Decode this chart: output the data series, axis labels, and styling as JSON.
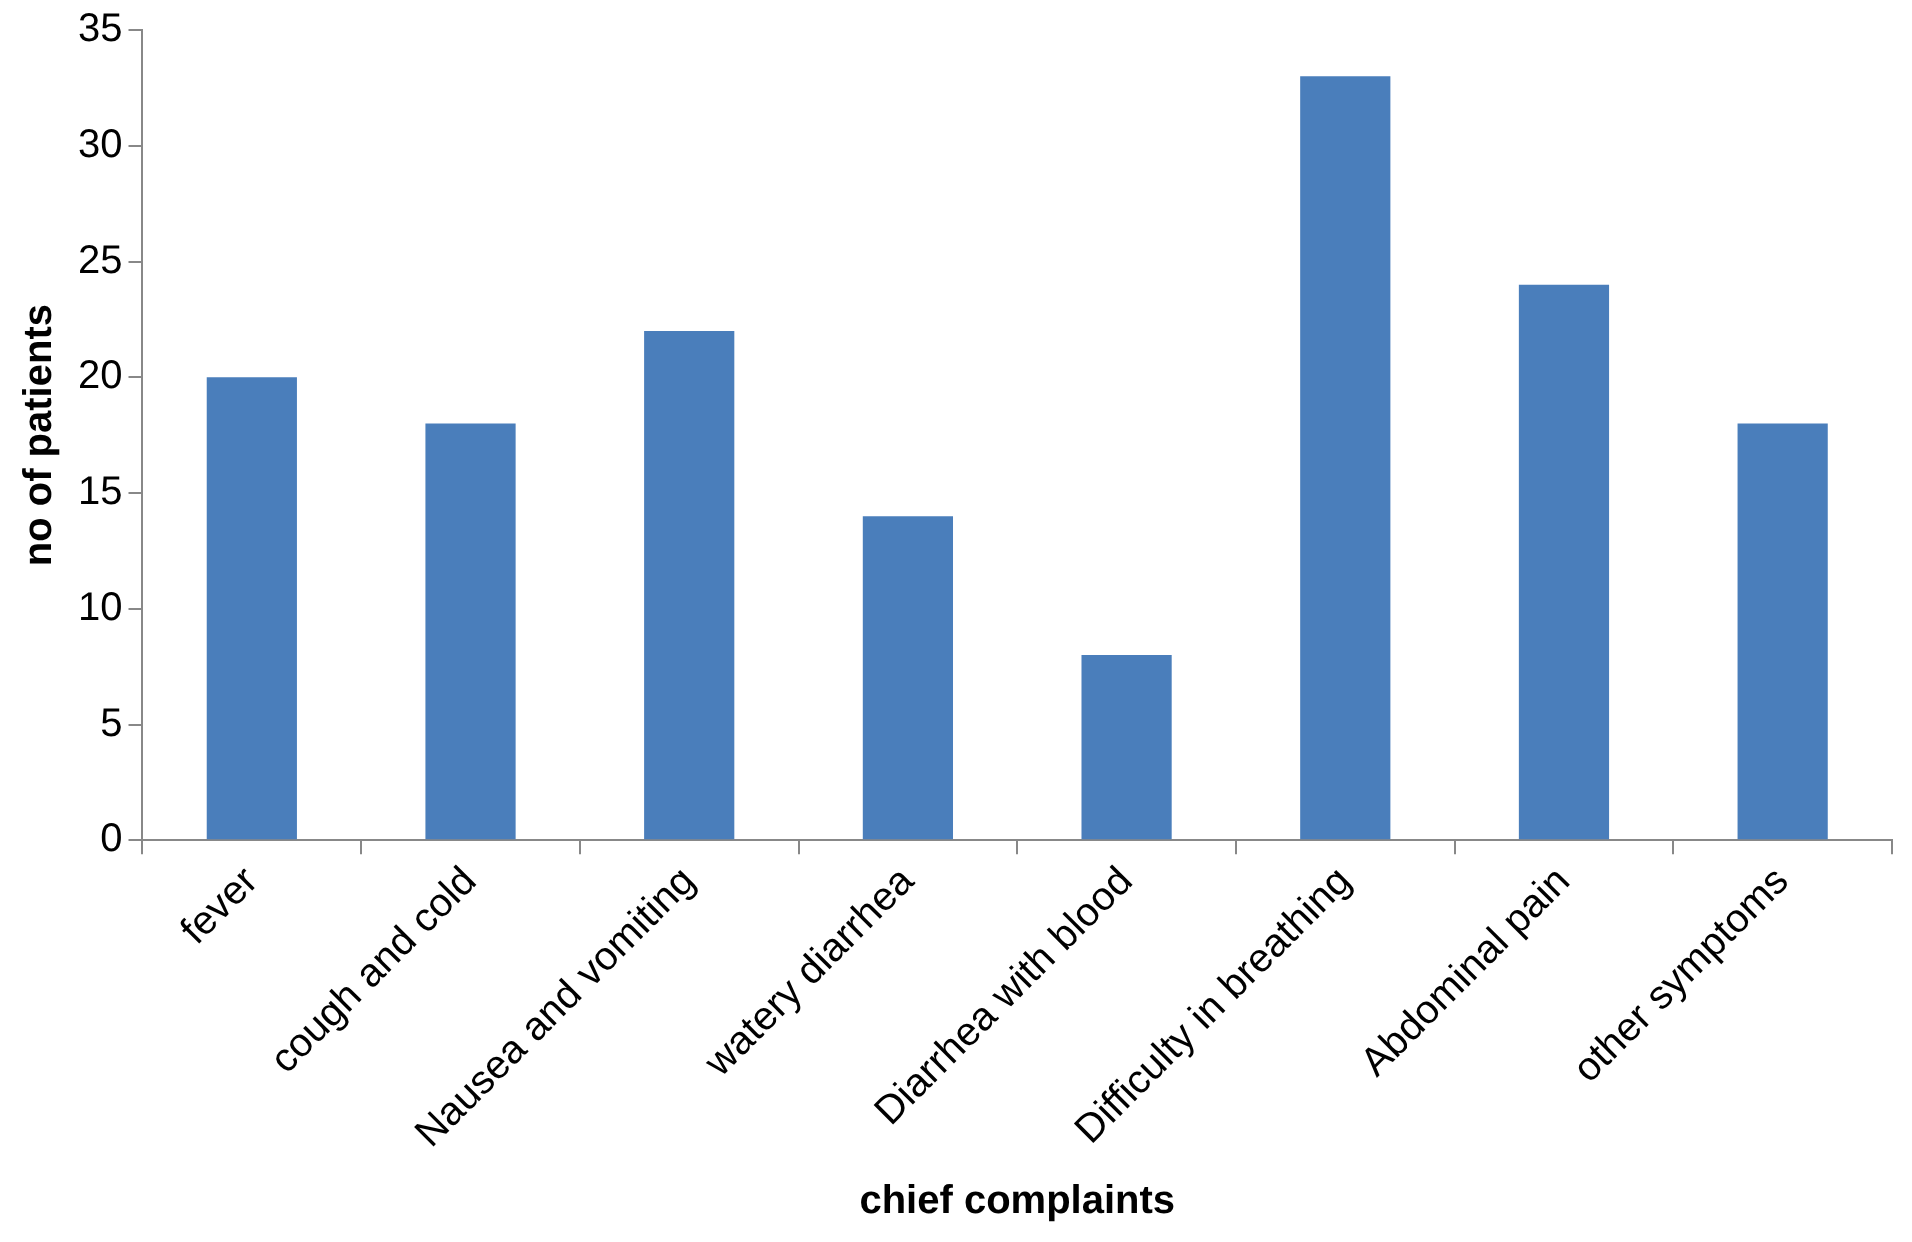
{
  "chart_data": {
    "type": "bar",
    "xlabel": "chief complaints",
    "ylabel": "no of patients",
    "categories": [
      "fever",
      "cough and cold",
      "Nausea and vomiting",
      "watery diarrhea",
      "Diarrhea with blood",
      "Difficulty in breathing",
      "Abdominal pain",
      "other symptoms"
    ],
    "values": [
      20,
      18,
      22,
      14,
      8,
      33,
      24,
      18
    ],
    "color": "#4a7ebb",
    "ylim": [
      0,
      35
    ],
    "yticks": [
      0,
      5,
      10,
      15,
      20,
      25,
      30,
      35
    ],
    "grid": false,
    "legend": false
  }
}
